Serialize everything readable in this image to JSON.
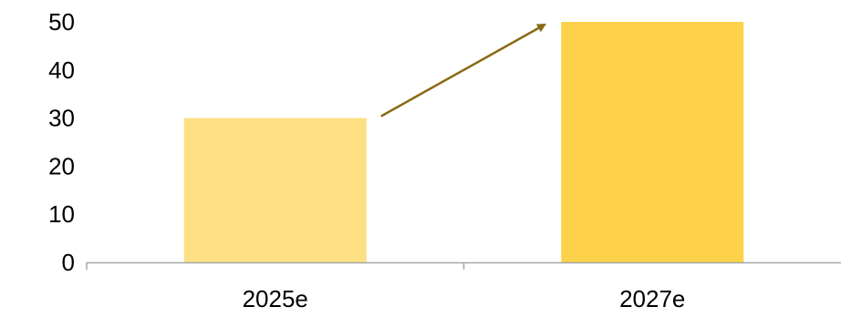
{
  "chart_data": {
    "type": "bar",
    "categories": [
      "2025e",
      "2027e"
    ],
    "values": [
      30,
      50
    ],
    "title": "",
    "xlabel": "",
    "ylabel": "",
    "ylim": [
      0,
      50
    ],
    "yticks": [
      0,
      10,
      20,
      30,
      40,
      50
    ],
    "grid": false,
    "legend": "none",
    "bar_colors": [
      "#FDE084",
      "#FDD14A"
    ],
    "axis_color": "#A6A6A6",
    "annotation": {
      "type": "arrow",
      "from_category": "2025e",
      "to_category": "2027e",
      "color": "#8B6914"
    }
  }
}
